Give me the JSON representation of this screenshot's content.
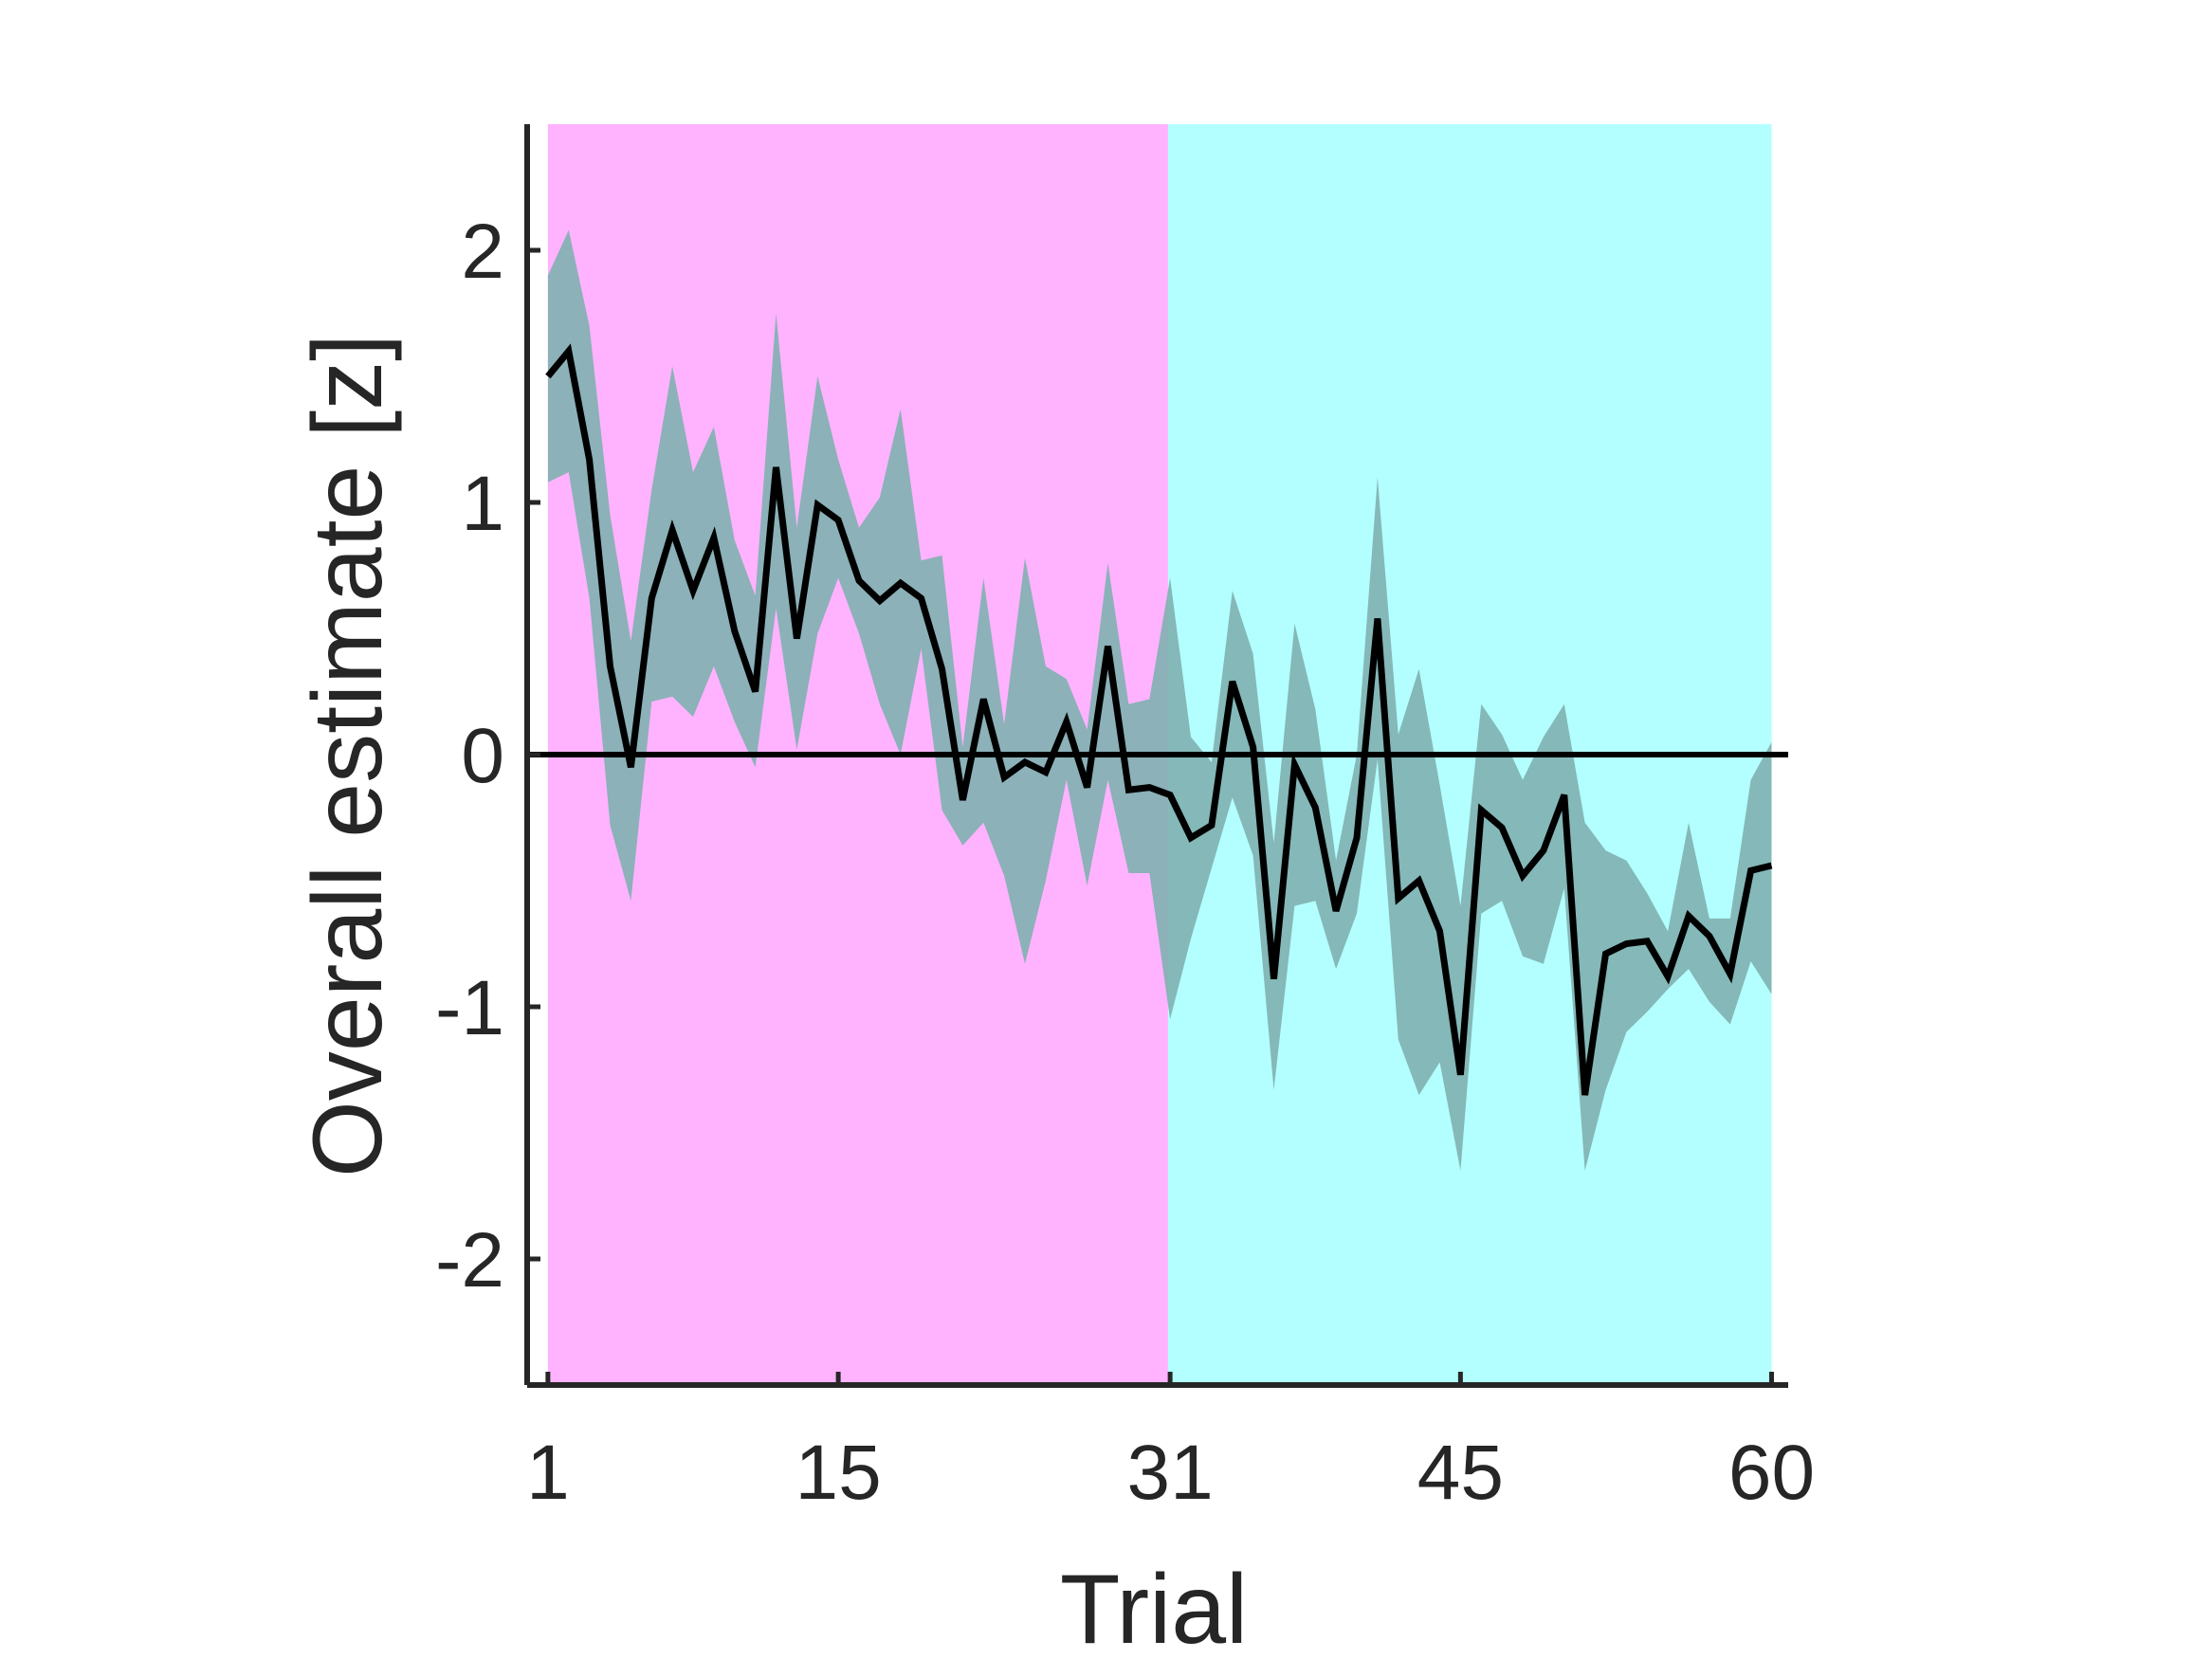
{
  "chart_data": {
    "type": "line",
    "xlabel": "Trial",
    "ylabel": "Overall estimate [z]",
    "xlim": [
      0,
      60.8
    ],
    "ylim": [
      -2.5,
      2.5
    ],
    "x_ticks": [
      1,
      15,
      31,
      45,
      60
    ],
    "y_ticks": [
      -2,
      -1,
      0,
      1,
      2
    ],
    "grid": false,
    "reference_line": 0,
    "phases": [
      {
        "x_start": 1,
        "x_end": 30.9,
        "color": "#FFB3FF"
      },
      {
        "x_start": 30.9,
        "x_end": 60,
        "color": "#B3FFFF"
      }
    ],
    "series": [
      {
        "line_color": "#000000",
        "band_color": "#7FB0B0",
        "x": [
          1,
          2,
          3,
          4,
          5,
          6,
          7,
          8,
          9,
          10,
          11,
          12,
          13,
          14,
          15,
          16,
          17,
          18,
          19,
          20,
          21,
          22,
          23,
          24,
          25,
          26,
          27,
          28,
          29,
          30,
          31,
          32,
          33,
          34,
          35,
          36,
          37,
          38,
          39,
          40,
          41,
          42,
          43,
          44,
          45,
          46,
          47,
          48,
          49,
          50,
          51,
          52,
          53,
          54,
          55,
          56,
          57,
          58,
          59,
          60
        ],
        "y": [
          1.5,
          1.6,
          1.17,
          0.35,
          -0.05,
          0.62,
          0.89,
          0.65,
          0.86,
          0.49,
          0.25,
          1.14,
          0.46,
          0.99,
          0.93,
          0.69,
          0.61,
          0.68,
          0.62,
          0.34,
          -0.18,
          0.22,
          -0.09,
          -0.03,
          -0.07,
          0.13,
          -0.13,
          0.43,
          -0.14,
          -0.13,
          -0.16,
          -0.33,
          -0.28,
          0.29,
          0.03,
          -0.89,
          -0.04,
          -0.21,
          -0.62,
          -0.33,
          0.54,
          -0.57,
          -0.5,
          -0.7,
          -1.27,
          -0.22,
          -0.29,
          -0.48,
          -0.38,
          -0.16,
          -1.35,
          -0.79,
          -0.75,
          -0.74,
          -0.88,
          -0.64,
          -0.72,
          -0.87,
          -0.46,
          -0.44
        ],
        "upper": [
          1.9,
          2.08,
          1.7,
          0.95,
          0.45,
          1.05,
          1.54,
          1.12,
          1.3,
          0.85,
          0.63,
          1.75,
          0.9,
          1.5,
          1.17,
          0.9,
          1.02,
          1.37,
          0.77,
          0.79,
          0.03,
          0.7,
          0.12,
          0.78,
          0.35,
          0.3,
          0.1,
          0.76,
          0.2,
          0.22,
          0.7,
          0.07,
          -0.03,
          0.65,
          0.4,
          -0.35,
          0.52,
          0.18,
          -0.42,
          0.0,
          1.1,
          0.08,
          0.34,
          -0.12,
          -0.6,
          0.2,
          0.08,
          -0.1,
          0.07,
          0.2,
          -0.27,
          -0.38,
          -0.42,
          -0.55,
          -0.7,
          -0.27,
          -0.65,
          -0.65,
          -0.1,
          0.05
        ],
        "lower": [
          1.08,
          1.12,
          0.62,
          -0.28,
          -0.58,
          0.21,
          0.23,
          0.15,
          0.35,
          0.13,
          -0.05,
          0.58,
          0.02,
          0.48,
          0.7,
          0.48,
          0.2,
          0.0,
          0.42,
          -0.22,
          -0.36,
          -0.27,
          -0.48,
          -0.83,
          -0.5,
          -0.1,
          -0.52,
          -0.1,
          -0.47,
          -0.47,
          -1.05,
          -0.73,
          -0.45,
          -0.17,
          -0.4,
          -1.33,
          -0.6,
          -0.58,
          -0.85,
          -0.63,
          -0.02,
          -1.13,
          -1.35,
          -1.22,
          -1.65,
          -0.63,
          -0.58,
          -0.8,
          -0.83,
          -0.53,
          -1.65,
          -1.33,
          -1.1,
          -1.02,
          -0.93,
          -0.85,
          -0.98,
          -1.07,
          -0.82,
          -0.95
        ]
      }
    ]
  }
}
